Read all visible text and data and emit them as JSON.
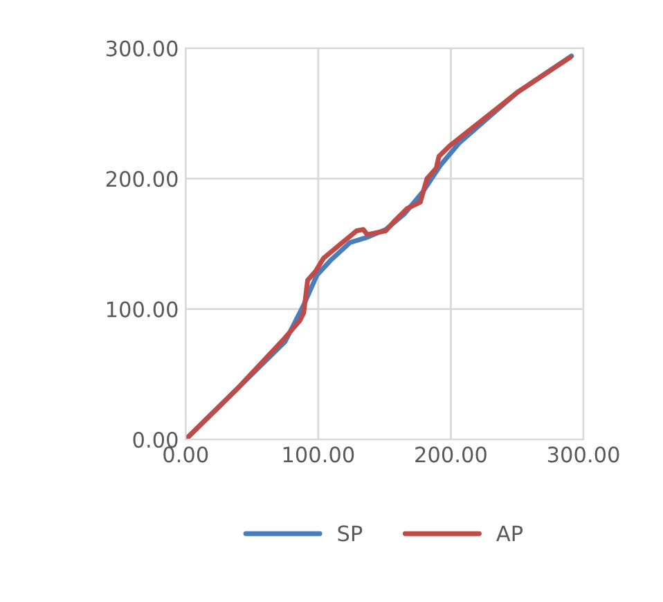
{
  "chart_data": {
    "type": "line",
    "xlim": [
      0,
      300
    ],
    "ylim": [
      0,
      300
    ],
    "xticks": [
      {
        "value": 0,
        "label": "0.00"
      },
      {
        "value": 100,
        "label": "100.00"
      },
      {
        "value": 200,
        "label": "200.00"
      },
      {
        "value": 300,
        "label": "300.00"
      }
    ],
    "yticks": [
      {
        "value": 0,
        "label": "0.00"
      },
      {
        "value": 100,
        "label": "100.00"
      },
      {
        "value": 200,
        "label": "200.00"
      },
      {
        "value": 300,
        "label": "300.00"
      }
    ],
    "grid": true,
    "legend": "bottom",
    "marker": "none",
    "line_style": "solid",
    "series": [
      {
        "name": "SP",
        "color": "#4a7ebb",
        "x": [
          0,
          40,
          75,
          89,
          99,
          110,
          124,
          137,
          151,
          165,
          179,
          192,
          206,
          250,
          291
        ],
        "values": [
          0,
          40,
          75,
          103,
          126,
          138,
          151,
          155,
          161,
          173,
          190,
          210,
          227,
          266,
          294
        ]
      },
      {
        "name": "AP",
        "color": "#be4b48",
        "x": [
          0,
          40,
          75,
          86,
          89,
          92,
          98,
          104,
          117,
          129,
          134,
          137,
          151,
          158,
          167,
          177,
          182,
          189,
          191,
          199,
          250,
          290
        ],
        "values": [
          0,
          40,
          78,
          91,
          97,
          122,
          129,
          139,
          150,
          160,
          161,
          157,
          160,
          168,
          177,
          182,
          200,
          208,
          217,
          225,
          266,
          293
        ]
      }
    ]
  }
}
